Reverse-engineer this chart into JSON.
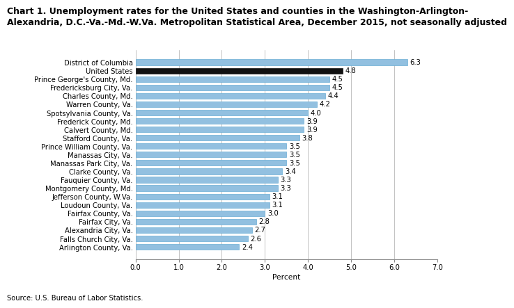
{
  "title_line1": "Chart 1. Unemployment rates for the United States and counties in the Washington-Arlington-",
  "title_line2": "Alexandria, D.C.-Va.-Md.-W.Va. Metropolitan Statistical Area, December 2015, not seasonally adjusted",
  "categories": [
    "Arlington County, Va.",
    "Falls Church City, Va.",
    "Alexandria City, Va.",
    "Fairfax City, Va.",
    "Fairfax County, Va.",
    "Loudoun County, Va.",
    "Jefferson County, W.Va.",
    "Montgomery County, Md.",
    "Fauquier County, Va.",
    "Clarke County, Va.",
    "Manassas Park City, Va.",
    "Manassas City, Va.",
    "Prince William County, Va.",
    "Stafford County, Va.",
    "Calvert County, Md.",
    "Frederick County, Md.",
    "Spotsylvania County, Va.",
    "Warren County, Va.",
    "Charles County, Md.",
    "Fredericksburg City, Va.",
    "Prince George's County, Md.",
    "United States",
    "District of Columbia"
  ],
  "values": [
    2.4,
    2.6,
    2.7,
    2.8,
    3.0,
    3.1,
    3.1,
    3.3,
    3.3,
    3.4,
    3.5,
    3.5,
    3.5,
    3.8,
    3.9,
    3.9,
    4.0,
    4.2,
    4.4,
    4.5,
    4.5,
    4.8,
    6.3
  ],
  "bar_colors": [
    "#92C0E0",
    "#92C0E0",
    "#92C0E0",
    "#92C0E0",
    "#92C0E0",
    "#92C0E0",
    "#92C0E0",
    "#92C0E0",
    "#92C0E0",
    "#92C0E0",
    "#92C0E0",
    "#92C0E0",
    "#92C0E0",
    "#92C0E0",
    "#92C0E0",
    "#92C0E0",
    "#92C0E0",
    "#92C0E0",
    "#92C0E0",
    "#92C0E0",
    "#92C0E0",
    "#111111",
    "#92C0E0"
  ],
  "bar_edge_colors": [
    "#6aadd5",
    "#6aadd5",
    "#6aadd5",
    "#6aadd5",
    "#6aadd5",
    "#6aadd5",
    "#6aadd5",
    "#6aadd5",
    "#6aadd5",
    "#6aadd5",
    "#6aadd5",
    "#6aadd5",
    "#6aadd5",
    "#6aadd5",
    "#6aadd5",
    "#6aadd5",
    "#6aadd5",
    "#6aadd5",
    "#6aadd5",
    "#6aadd5",
    "#6aadd5",
    "#111111",
    "#6aadd5"
  ],
  "xlabel": "Percent",
  "xlim": [
    0,
    7.0
  ],
  "xticks": [
    0.0,
    1.0,
    2.0,
    3.0,
    4.0,
    5.0,
    6.0,
    7.0
  ],
  "xticklabels": [
    "0.0",
    "1.0",
    "2.0",
    "3.0",
    "4.0",
    "5.0",
    "6.0",
    "7.0"
  ],
  "source": "Source: U.S. Bureau of Labor Statistics.",
  "label_fontsize": 7.2,
  "title_fontsize": 9.0,
  "bar_height": 0.68,
  "value_label_fontsize": 7.2,
  "figure_bg": "#FFFFFF"
}
